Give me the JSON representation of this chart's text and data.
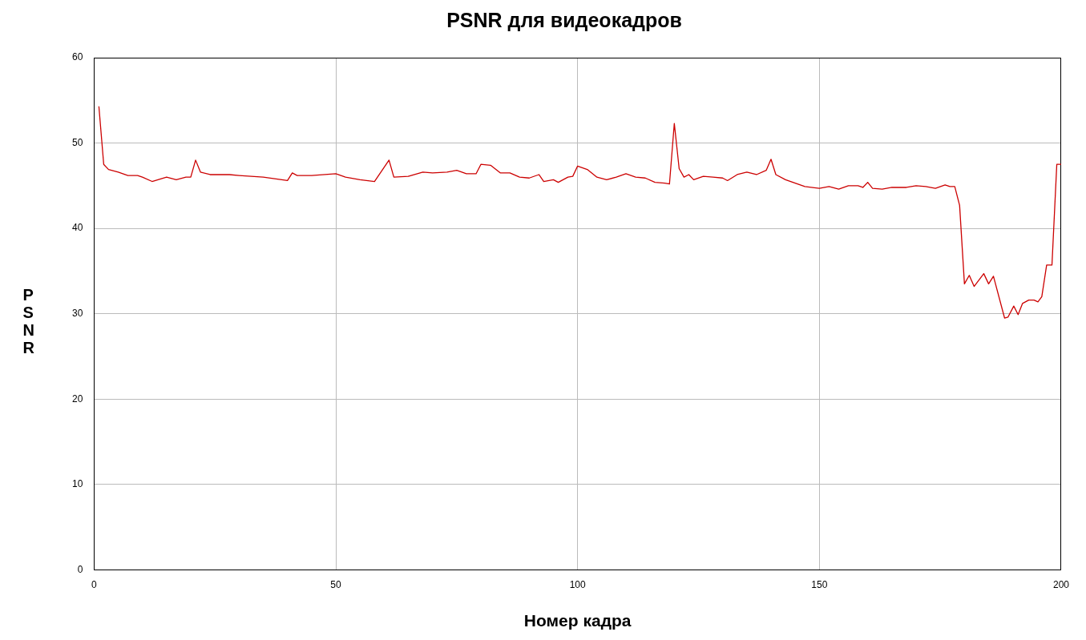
{
  "chart_data": {
    "type": "line",
    "title": "PSNR для видеокадров",
    "xlabel": "Номер кадра",
    "ylabel": "PSNR",
    "xlim": [
      0,
      200
    ],
    "xticks": [
      0,
      50,
      100,
      150,
      200
    ],
    "ylim": [
      0,
      60
    ],
    "yticks": [
      0,
      10,
      20,
      30,
      40,
      50,
      60
    ],
    "grid": true,
    "legend": false,
    "marker": "none",
    "line_style": "solid",
    "series": [
      {
        "color": "#cc0000",
        "x": [
          1,
          2,
          3,
          5,
          7,
          9,
          10,
          12,
          15,
          17,
          19,
          20,
          21,
          22,
          24,
          28,
          30,
          35,
          40,
          41,
          42,
          45,
          50,
          52,
          55,
          58,
          61,
          62,
          65,
          68,
          70,
          73,
          75,
          77,
          79,
          80,
          82,
          84,
          86,
          88,
          90,
          92,
          93,
          95,
          96,
          98,
          99,
          100,
          102,
          104,
          106,
          108,
          110,
          112,
          114,
          116,
          118,
          119,
          120,
          121,
          122,
          123,
          124,
          126,
          128,
          130,
          131,
          133,
          135,
          137,
          139,
          140,
          141,
          143,
          145,
          147,
          150,
          152,
          154,
          156,
          158,
          159,
          160,
          161,
          163,
          165,
          168,
          170,
          172,
          174,
          176,
          177,
          178,
          179,
          180,
          181,
          182,
          184,
          185,
          186,
          188.3,
          189,
          190.2,
          191.1,
          192,
          193.3,
          194.4,
          195.2,
          196,
          197,
          198.1,
          199.1,
          200
        ],
        "values": [
          54.3,
          47.5,
          46.9,
          46.6,
          46.2,
          46.2,
          46.0,
          45.5,
          46.0,
          45.7,
          46.0,
          46.0,
          48.0,
          46.6,
          46.3,
          46.3,
          46.2,
          46.0,
          45.6,
          46.5,
          46.2,
          46.2,
          46.4,
          46.0,
          45.7,
          45.5,
          48.0,
          46.0,
          46.1,
          46.6,
          46.5,
          46.6,
          46.8,
          46.4,
          46.4,
          47.5,
          47.4,
          46.5,
          46.5,
          46.0,
          45.9,
          46.3,
          45.5,
          45.7,
          45.4,
          46.0,
          46.1,
          47.3,
          46.9,
          46.0,
          45.7,
          46.0,
          46.4,
          46.0,
          45.9,
          45.4,
          45.3,
          45.2,
          52.3,
          47.0,
          46.0,
          46.3,
          45.7,
          46.1,
          46.0,
          45.9,
          45.6,
          46.3,
          46.6,
          46.3,
          46.8,
          48.1,
          46.3,
          45.7,
          45.3,
          44.9,
          44.7,
          44.9,
          44.6,
          45.0,
          45.0,
          44.8,
          45.4,
          44.7,
          44.6,
          44.8,
          44.8,
          45.0,
          44.9,
          44.7,
          45.1,
          44.9,
          44.9,
          42.7,
          33.5,
          34.5,
          33.2,
          34.7,
          33.5,
          34.4,
          29.5,
          29.6,
          30.9,
          29.9,
          31.2,
          31.6,
          31.6,
          31.4,
          32.0,
          35.7,
          35.7,
          47.5,
          47.5
        ]
      }
    ]
  }
}
